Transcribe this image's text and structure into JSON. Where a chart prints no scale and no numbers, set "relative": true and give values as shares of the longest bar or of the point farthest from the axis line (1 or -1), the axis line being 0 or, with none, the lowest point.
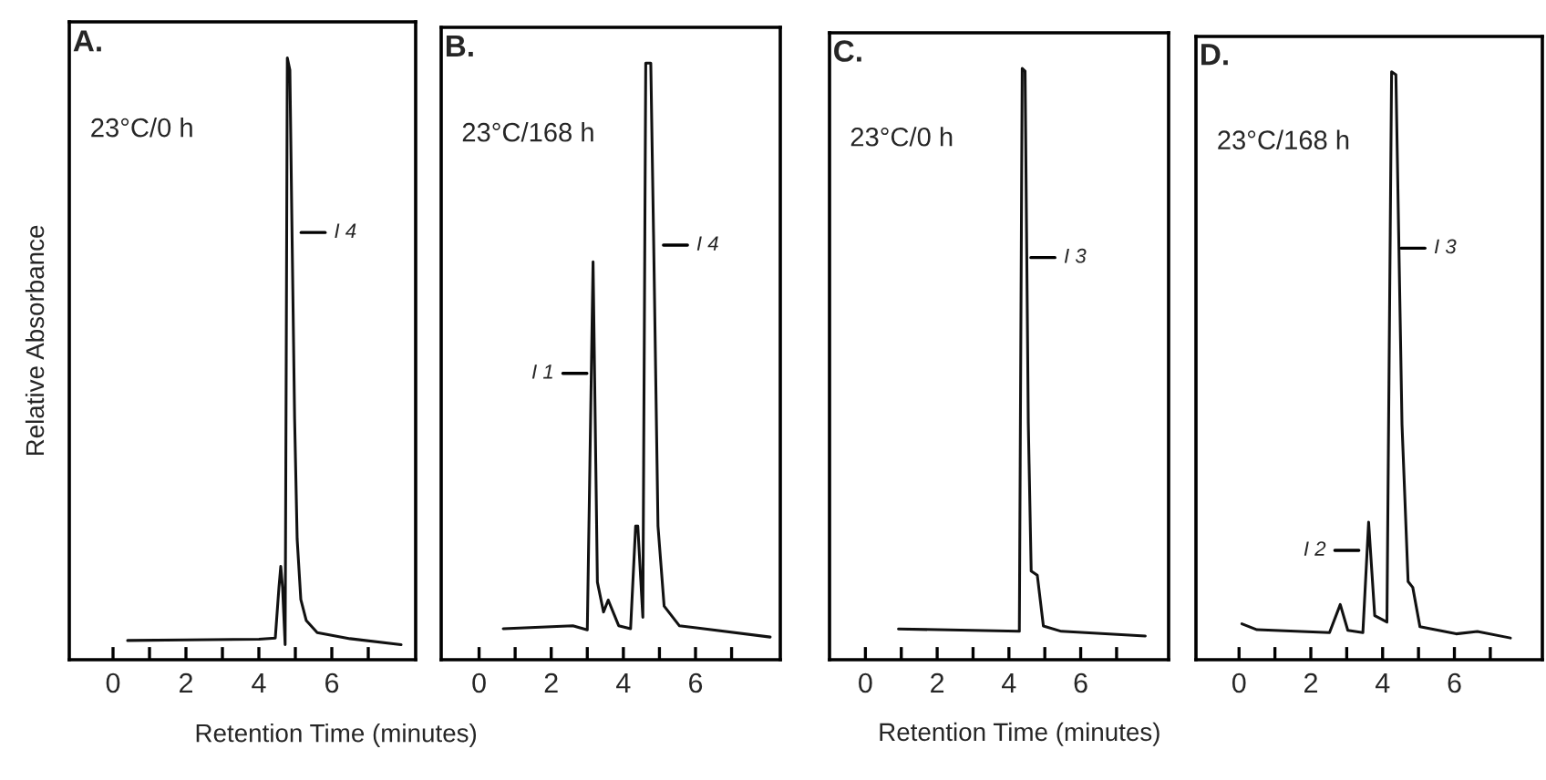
{
  "chart_data": [
    {
      "type": "line",
      "title": "A.",
      "ylabel": "Relative Absorbance",
      "xlabel": "Retention Time (minutes)",
      "relative": true,
      "xlim": [
        -1.2,
        8.3
      ],
      "xticks": [
        0,
        {
          "value": 1,
          "label": null
        },
        2,
        {
          "value": 3,
          "label": null
        },
        4,
        {
          "value": 5,
          "label": null
        },
        6,
        {
          "value": 7,
          "label": null
        }
      ],
      "tick_labels": "x",
      "grid": false,
      "legend": false,
      "annotations": [
        "23°C/0 h",
        {
          "text": "I 4",
          "x": 4.95,
          "y": 0.71
        }
      ],
      "series": [
        {
          "color": "#111111",
          "x": [
            0.4,
            2,
            4,
            4.45,
            4.55,
            4.6,
            4.65,
            4.72,
            4.75,
            4.78,
            4.85,
            4.9,
            4.98,
            5.05,
            5.15,
            5.3,
            5.6,
            6.5,
            7.9
          ],
          "values": [
            0.032,
            0.033,
            0.034,
            0.036,
            0.12,
            0.155,
            0.12,
            0.025,
            0.5,
            1.0,
            0.98,
            0.75,
            0.4,
            0.2,
            0.1,
            0.065,
            0.045,
            0.035,
            0.025
          ]
        }
      ]
    },
    {
      "type": "line",
      "title": "B.",
      "relative": true,
      "xlim": [
        -1.05,
        8.35
      ],
      "xticks": [
        0,
        {
          "value": 1,
          "label": null
        },
        2,
        {
          "value": 3,
          "label": null
        },
        4,
        {
          "value": 5,
          "label": null
        },
        6,
        {
          "value": 7,
          "label": null
        }
      ],
      "tick_labels": "x",
      "grid": false,
      "legend": false,
      "annotations": [
        "23°C/168 h",
        {
          "text": "I 1",
          "x": 3.2,
          "y": 0.48
        },
        {
          "text": "I 4",
          "x": 4.9,
          "y": 0.695
        }
      ],
      "series": [
        {
          "color": "#111111",
          "x": [
            0.67,
            2.6,
            3.0,
            3.16,
            3.28,
            3.45,
            3.58,
            3.87,
            4.2,
            4.34,
            4.4,
            4.54,
            4.62,
            4.76,
            4.84,
            4.96,
            5.13,
            5.55,
            8.07
          ],
          "values": [
            0.052,
            0.057,
            0.05,
            0.667,
            0.13,
            0.08,
            0.1,
            0.057,
            0.052,
            0.224,
            0.224,
            0.071,
            1.0,
            1.0,
            0.7,
            0.224,
            0.09,
            0.057,
            0.038
          ]
        }
      ]
    },
    {
      "type": "line",
      "title": "C.",
      "xlabel": "Retention Time (minutes)",
      "relative": true,
      "xlim": [
        -1.0,
        8.45
      ],
      "xticks": [
        0,
        {
          "value": 1,
          "label": null
        },
        2,
        {
          "value": 3,
          "label": null
        },
        4,
        {
          "value": 5,
          "label": null
        },
        6,
        {
          "value": 7,
          "label": null
        }
      ],
      "tick_labels": "x",
      "grid": false,
      "legend": false,
      "annotations": [
        "23°C/0 h",
        {
          "text": "I 3",
          "x": 4.4,
          "y": 0.68
        }
      ],
      "series": [
        {
          "color": "#111111",
          "x": [
            0.92,
            4.29,
            4.37,
            4.45,
            4.54,
            4.62,
            4.79,
            4.96,
            5.46,
            7.8
          ],
          "values": [
            0.052,
            0.048,
            1.0,
            0.995,
            0.4,
            0.15,
            0.143,
            0.057,
            0.048,
            0.04
          ]
        }
      ]
    },
    {
      "type": "line",
      "title": "D.",
      "relative": true,
      "xlim": [
        -1.2,
        8.45
      ],
      "xticks": [
        0,
        {
          "value": 1,
          "label": null
        },
        2,
        {
          "value": 3,
          "label": null
        },
        4,
        {
          "value": 5,
          "label": null
        },
        6,
        {
          "value": 7,
          "label": null
        }
      ],
      "tick_labels": "x",
      "grid": false,
      "legend": false,
      "annotations": [
        "23°C/168 h",
        {
          "text": "I 2",
          "x": 3.55,
          "y": 0.186
        },
        {
          "text": "I 3",
          "x": 4.3,
          "y": 0.7
        }
      ],
      "series": [
        {
          "color": "#111111",
          "x": [
            0.08,
            0.5,
            2.52,
            2.82,
            3.03,
            3.45,
            3.61,
            3.78,
            4.12,
            4.25,
            4.37,
            4.54,
            4.71,
            4.84,
            5.04,
            6.05,
            6.64,
            7.56
          ],
          "values": [
            0.061,
            0.051,
            0.046,
            0.094,
            0.05,
            0.046,
            0.234,
            0.075,
            0.064,
            1.0,
            0.995,
            0.4,
            0.133,
            0.123,
            0.056,
            0.044,
            0.048,
            0.037
          ]
        }
      ]
    }
  ]
}
